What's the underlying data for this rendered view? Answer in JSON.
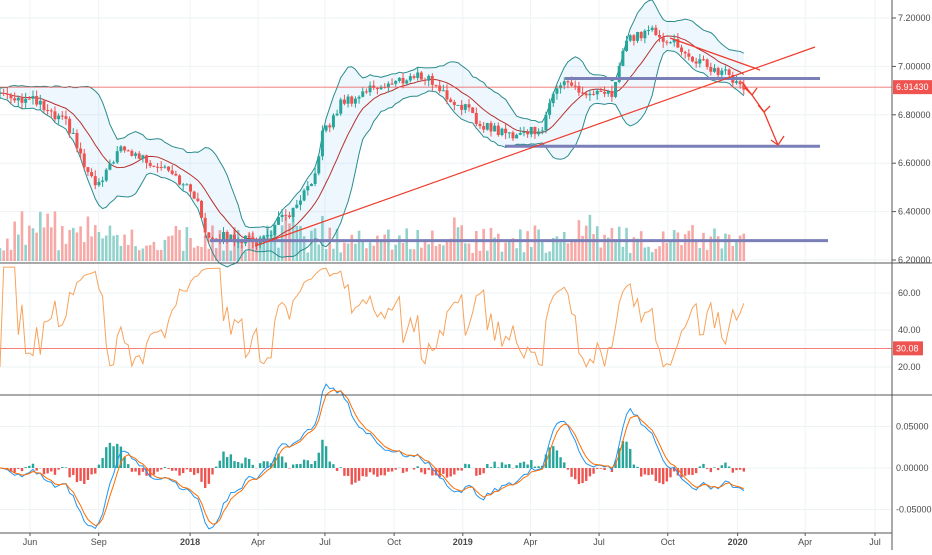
{
  "chart_data": {
    "type": "candlestick",
    "title": "",
    "x_unit": "months since Jun 2017",
    "time_labels": [
      "Jun",
      "Sep",
      "2018",
      "Apr",
      "Jul",
      "Oct",
      "2019",
      "Apr",
      "Jul",
      "Oct",
      "2020",
      "Apr",
      "Jul"
    ],
    "price": {
      "ylim": [
        6.2,
        7.24
      ],
      "ticks": [
        "7.20000",
        "7.00000",
        "6.80000",
        "6.60000",
        "6.40000",
        "6.20000"
      ],
      "tick_values": [
        7.2,
        7.0,
        6.8,
        6.6,
        6.4,
        6.2
      ],
      "last_price_label": "6.91430",
      "last_price": 6.9143,
      "key_points": [
        [
          -1.31,
          6.89
        ],
        [
          0,
          6.86
        ],
        [
          1.31,
          6.78
        ],
        [
          2.97,
          6.51
        ],
        [
          3.93,
          6.65
        ],
        [
          5.9,
          6.59
        ],
        [
          6.99,
          6.49
        ],
        [
          7.86,
          6.3
        ],
        [
          9.96,
          6.28
        ],
        [
          11.35,
          6.39
        ],
        [
          12.23,
          6.49
        ],
        [
          12.88,
          6.74
        ],
        [
          13.76,
          6.86
        ],
        [
          15.28,
          6.92
        ],
        [
          17.03,
          6.96
        ],
        [
          18.86,
          6.84
        ],
        [
          19.65,
          6.76
        ],
        [
          20.96,
          6.72
        ],
        [
          22.27,
          6.74
        ],
        [
          23.14,
          6.94
        ],
        [
          24.45,
          6.88
        ],
        [
          25.33,
          6.88
        ],
        [
          26.11,
          7.11
        ],
        [
          27.07,
          7.15
        ],
        [
          27.95,
          7.11
        ],
        [
          28.82,
          7.03
        ],
        [
          30.13,
          6.98
        ],
        [
          31.22,
          6.914
        ]
      ],
      "horizontal_levels": [
        6.95,
        6.67,
        6.28
      ],
      "up_color": "#26a69a",
      "down_color": "#ef5350"
    },
    "oscillator": {
      "ylim": [
        5,
        76
      ],
      "ticks": [
        "60.00",
        "40.00",
        "20.00"
      ],
      "tick_values": [
        60,
        40,
        20
      ],
      "level_label": "30.08",
      "level": 30.08,
      "line_color": "#f7a35c"
    },
    "macd": {
      "ylim": [
        -0.068,
        0.088
      ],
      "ticks": [
        "0.05000",
        "0.00000",
        "-0.05000"
      ],
      "tick_values": [
        0.05,
        0,
        -0.05
      ],
      "macd_color": "#2196f3",
      "signal_color": "#ff6d00"
    }
  }
}
